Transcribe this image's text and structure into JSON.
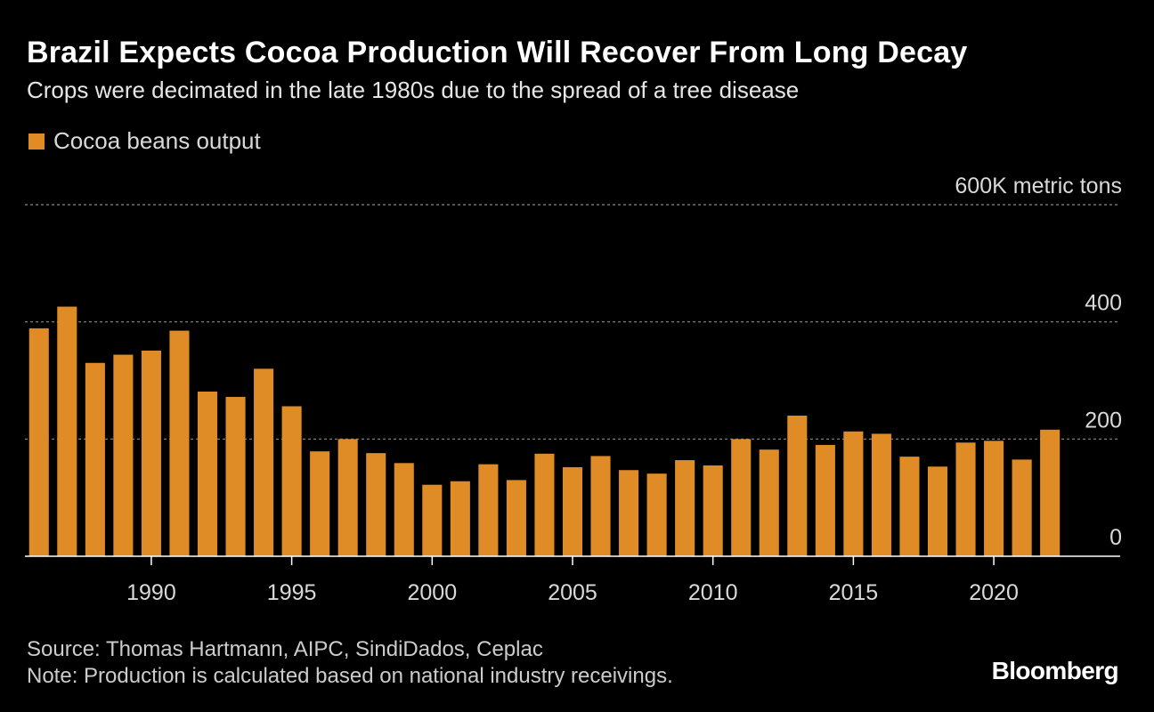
{
  "header": {
    "title": "Brazil Expects Cocoa Production Will Recover From Long Decay",
    "subtitle": "Crops were decimated in the late 1980s due to the spread of a tree disease"
  },
  "footer": {
    "source": "Source: Thomas Hartmann, AIPC, SindiDados, Ceplac",
    "note": "Note: Production is calculated based on national industry receivings.",
    "brand": "Bloomberg"
  },
  "colors": {
    "bar": "#df8c27",
    "gridline": "#8a8a8a",
    "axis": "#ffffff"
  },
  "chart_data": {
    "type": "bar",
    "title": "Brazil Expects Cocoa Production Will Recover From Long Decay",
    "subtitle": "Crops were decimated in the late 1980s due to the spread of a tree disease",
    "unit_label": "600K metric tons",
    "legend": [
      {
        "name": "Cocoa beans output",
        "color": "#df8c27"
      }
    ],
    "ylim": [
      0,
      600
    ],
    "yticks": [
      {
        "value": 600,
        "label": "600K metric tons"
      },
      {
        "value": 400,
        "label": "400"
      },
      {
        "value": 200,
        "label": "200"
      },
      {
        "value": 0,
        "label": "0"
      }
    ],
    "xlim": [
      1985.5,
      2024.5
    ],
    "xticks": [
      {
        "value": 1990,
        "label": "1990"
      },
      {
        "value": 1995,
        "label": "1995"
      },
      {
        "value": 2000,
        "label": "2000"
      },
      {
        "value": 2005,
        "label": "2005"
      },
      {
        "value": 2010,
        "label": "2010"
      },
      {
        "value": 2015,
        "label": "2015"
      },
      {
        "value": 2020,
        "label": "2020"
      }
    ],
    "grid": true,
    "series": [
      {
        "name": "Cocoa beans output",
        "x": [
          1986,
          1987,
          1988,
          1989,
          1990,
          1991,
          1992,
          1993,
          1994,
          1995,
          1996,
          1997,
          1998,
          1999,
          2000,
          2001,
          2002,
          2003,
          2004,
          2005,
          2006,
          2007,
          2008,
          2009,
          2010,
          2011,
          2012,
          2013,
          2014,
          2015,
          2016,
          2017,
          2018,
          2019,
          2020,
          2021,
          2022
        ],
        "values": [
          389,
          426,
          330,
          344,
          351,
          385,
          281,
          272,
          320,
          256,
          179,
          200,
          176,
          159,
          122,
          128,
          157,
          130,
          175,
          152,
          171,
          147,
          141,
          164,
          155,
          200,
          182,
          240,
          190,
          213,
          209,
          170,
          153,
          194,
          197,
          165,
          216
        ]
      }
    ]
  }
}
